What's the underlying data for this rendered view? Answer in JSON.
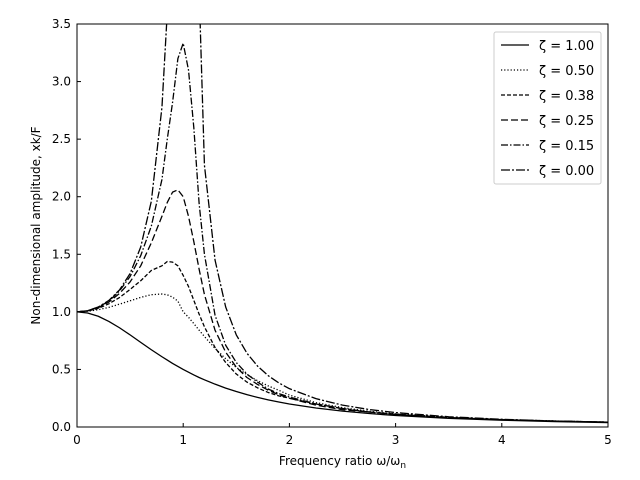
{
  "chart_data": {
    "type": "line",
    "title": "",
    "xlabel": "Frequency ratio ω/ω",
    "xlabel_sub": "n",
    "ylabel": "Non-dimensional amplitude, xk/F",
    "xlim": [
      0,
      5
    ],
    "ylim": [
      0,
      3.5
    ],
    "x_ticks": [
      "0",
      "1",
      "2",
      "3",
      "4",
      "5"
    ],
    "y_ticks": [
      "0.0",
      "0.5",
      "1.0",
      "1.5",
      "2.0",
      "2.5",
      "3.0",
      "3.5"
    ],
    "grid": false,
    "legend_position": "top-right",
    "x": [
      0,
      0.1,
      0.2,
      0.3,
      0.4,
      0.5,
      0.6,
      0.7,
      0.8,
      0.85,
      0.9,
      0.95,
      1.0,
      1.05,
      1.1,
      1.15,
      1.2,
      1.3,
      1.4,
      1.5,
      1.6,
      1.7,
      1.8,
      1.9,
      2.0,
      2.25,
      2.5,
      2.75,
      3.0,
      3.5,
      4.0,
      4.5,
      5.0
    ],
    "series": [
      {
        "name": "ζ = 1.00",
        "dash": "",
        "values": [
          1.0,
          0.99,
          0.962,
          0.917,
          0.862,
          0.8,
          0.735,
          0.671,
          0.61,
          0.581,
          0.552,
          0.526,
          0.5,
          0.476,
          0.452,
          0.43,
          0.41,
          0.372,
          0.338,
          0.308,
          0.281,
          0.257,
          0.236,
          0.217,
          0.2,
          0.165,
          0.138,
          0.117,
          0.1,
          0.075,
          0.059,
          0.047,
          0.038
        ]
      },
      {
        "name": "ζ = 0.50",
        "dash": "1.2,2",
        "values": [
          1.0,
          1.005,
          1.019,
          1.039,
          1.067,
          1.096,
          1.126,
          1.149,
          1.155,
          1.148,
          1.128,
          1.093,
          1.0,
          0.953,
          0.898,
          0.841,
          0.786,
          0.683,
          0.593,
          0.518,
          0.455,
          0.402,
          0.357,
          0.319,
          0.277,
          0.212,
          0.168,
          0.137,
          0.114,
          0.084,
          0.065,
          0.052,
          0.042
        ]
      },
      {
        "name": "ζ = 0.38",
        "dash": "4,2",
        "values": [
          1.0,
          1.007,
          1.03,
          1.07,
          1.124,
          1.195,
          1.27,
          1.36,
          1.4,
          1.437,
          1.432,
          1.4,
          1.316,
          1.22,
          1.1,
          0.98,
          0.87,
          0.69,
          0.56,
          0.46,
          0.39,
          0.34,
          0.3,
          0.27,
          0.25,
          0.2,
          0.16,
          0.13,
          0.11,
          0.082,
          0.064,
          0.051,
          0.042
        ]
      },
      {
        "name": "ζ = 0.25",
        "dash": "7,3",
        "values": [
          1.0,
          1.009,
          1.036,
          1.085,
          1.16,
          1.26,
          1.4,
          1.6,
          1.83,
          1.95,
          2.04,
          2.06,
          2.0,
          1.83,
          1.61,
          1.37,
          1.15,
          0.84,
          0.65,
          0.52,
          0.43,
          0.37,
          0.32,
          0.28,
          0.25,
          0.19,
          0.15,
          0.13,
          0.11,
          0.081,
          0.063,
          0.051,
          0.042
        ]
      },
      {
        "name": "ζ = 0.15",
        "dash": "7,2,1.5,2",
        "values": [
          1.0,
          1.01,
          1.04,
          1.093,
          1.182,
          1.307,
          1.488,
          1.745,
          2.15,
          2.5,
          2.82,
          3.2,
          3.333,
          3.1,
          2.6,
          1.94,
          1.5,
          0.97,
          0.71,
          0.56,
          0.46,
          0.39,
          0.33,
          0.29,
          0.26,
          0.2,
          0.16,
          0.13,
          0.11,
          0.081,
          0.063,
          0.051,
          0.042
        ]
      },
      {
        "name": "ζ = 0.00",
        "dash": "9,2,2,2",
        "values": [
          1.0,
          1.01,
          1.042,
          1.099,
          1.19,
          1.333,
          1.563,
          1.961,
          2.778,
          3.6,
          null,
          null,
          null,
          null,
          null,
          3.8,
          2.273,
          1.449,
          1.042,
          0.8,
          0.641,
          0.529,
          0.446,
          0.383,
          0.333,
          0.246,
          0.19,
          0.152,
          0.125,
          0.089,
          0.067,
          0.052,
          0.042
        ]
      }
    ]
  }
}
